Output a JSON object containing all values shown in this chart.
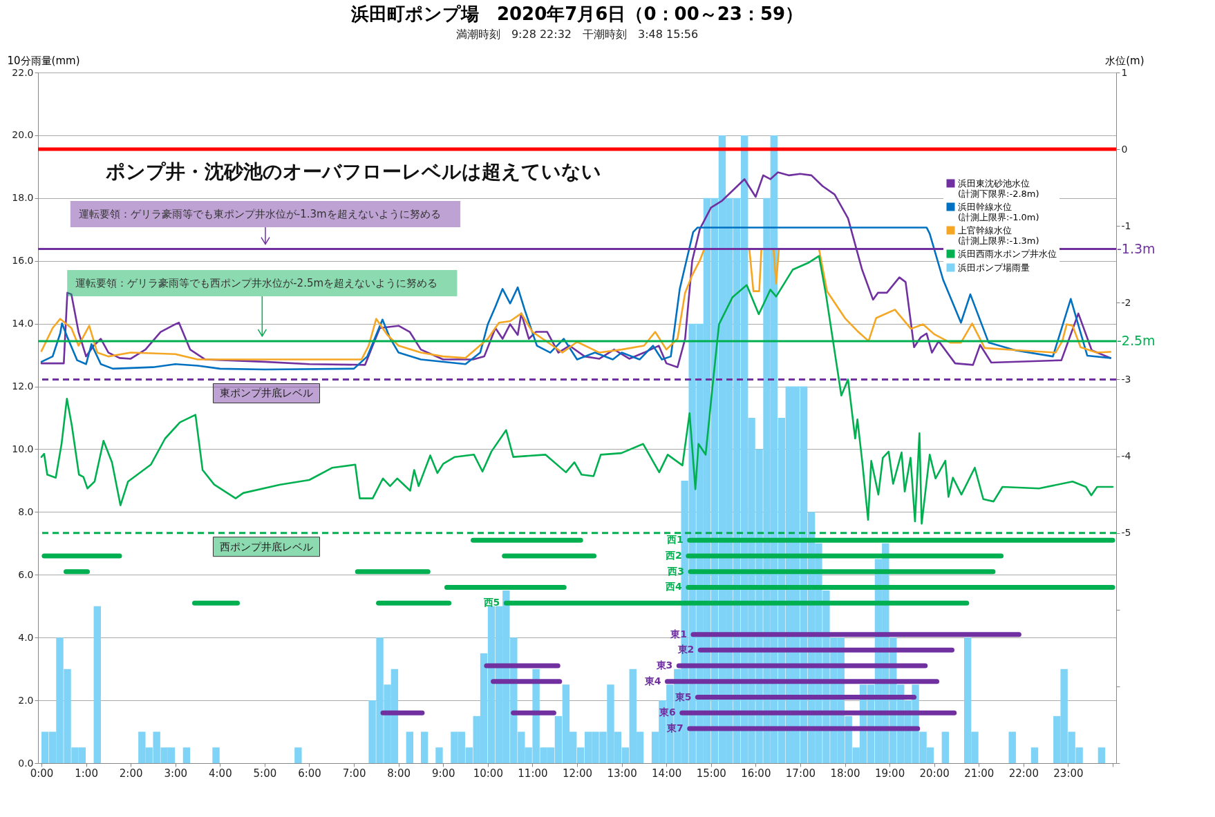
{
  "chart_data": {
    "type": "line",
    "title": "浜田町ポンプ場　2020年7月6日（0：00～23：59）",
    "subtitle": "満潮時刻　9:28 22:32　干潮時刻　3:48 15:56",
    "ylabel": "10分雨量(mm)",
    "y2label": "水位(m)",
    "grid": "y",
    "legend": "top right",
    "xlim": [
      0,
      24
    ],
    "xticks": [
      {
        "value": 0,
        "label": "0:00"
      },
      {
        "value": 1,
        "label": "1:00"
      },
      {
        "value": 2,
        "label": "2:00"
      },
      {
        "value": 3,
        "label": "3:00"
      },
      {
        "value": 4,
        "label": "4:00"
      },
      {
        "value": 5,
        "label": "5:00"
      },
      {
        "value": 6,
        "label": "6:00"
      },
      {
        "value": 7,
        "label": "7:00"
      },
      {
        "value": 8,
        "label": "8:00"
      },
      {
        "value": 9,
        "label": "9:00"
      },
      {
        "value": 10,
        "label": "10:00"
      },
      {
        "value": 11,
        "label": "11:00"
      },
      {
        "value": 12,
        "label": "12:00"
      },
      {
        "value": 13,
        "label": "13:00"
      },
      {
        "value": 14,
        "label": "14:00"
      },
      {
        "value": 15,
        "label": "15:00"
      },
      {
        "value": 16,
        "label": "16:00"
      },
      {
        "value": 17,
        "label": "17:00"
      },
      {
        "value": 18,
        "label": "18:00"
      },
      {
        "value": 19,
        "label": "19:00"
      },
      {
        "value": 20,
        "label": "20:00"
      },
      {
        "value": 21,
        "label": "21:00"
      },
      {
        "value": 22,
        "label": "22:00"
      },
      {
        "value": 23,
        "label": "23:00"
      },
      {
        "value": 24,
        "label": null
      }
    ],
    "ylim": [
      0,
      22
    ],
    "yticks": [
      {
        "value": 0,
        "label": "0.0"
      },
      {
        "value": 2,
        "label": "2.0"
      },
      {
        "value": 4,
        "label": "4.0"
      },
      {
        "value": 6,
        "label": "6.0"
      },
      {
        "value": 8,
        "label": "8.0"
      },
      {
        "value": 10,
        "label": "10.0"
      },
      {
        "value": 12,
        "label": "12.0"
      },
      {
        "value": 14,
        "label": "14.0"
      },
      {
        "value": 16,
        "label": "16.0"
      },
      {
        "value": 18,
        "label": "18.0"
      },
      {
        "value": 20,
        "label": "20.0"
      },
      {
        "value": 22,
        "label": "22.0"
      }
    ],
    "y2lim": [
      -8,
      1
    ],
    "y2ticks": [
      {
        "value": -8,
        "label": null
      },
      {
        "value": -7,
        "label": null
      },
      {
        "value": -6,
        "label": null
      },
      -5,
      -4,
      -3,
      -2,
      -1,
      0,
      1
    ],
    "series": [
      {
        "name": "浜田ポンプ場雨量",
        "type": "bar",
        "color": "#7fd3f7",
        "x": [
          0,
          0.17,
          0.33,
          0.5,
          0.67,
          0.83,
          1.17,
          2.17,
          2.33,
          2.5,
          2.67,
          2.83,
          3.17,
          3.83,
          5.67,
          7.33,
          7.5,
          7.67,
          7.83,
          8.17,
          8.5,
          8.83,
          9.17,
          9.33,
          9.5,
          9.67,
          9.83,
          10,
          10.17,
          10.33,
          10.5,
          10.67,
          10.83,
          11,
          11.17,
          11.33,
          11.5,
          11.67,
          11.83,
          12,
          12.17,
          12.33,
          12.5,
          12.67,
          12.83,
          13,
          13.17,
          13.33,
          13.67,
          13.83,
          14,
          14.17,
          14.33,
          14.5,
          14.67,
          14.83,
          15,
          15.17,
          15.33,
          15.5,
          15.67,
          15.83,
          16,
          16.17,
          16.33,
          16.5,
          16.67,
          16.83,
          17,
          17.17,
          17.33,
          17.5,
          17.67,
          17.83,
          18,
          18.17,
          18.33,
          18.5,
          18.67,
          18.83,
          19,
          19.17,
          19.33,
          19.5,
          19.67,
          19.83,
          20.17,
          20.67,
          20.83,
          21.67,
          22.17,
          22.67,
          22.83,
          23,
          23.17,
          23.67
        ],
        "values": [
          1,
          1,
          4,
          3,
          0.5,
          0.5,
          5,
          1,
          0.5,
          1,
          0.5,
          0.5,
          0.5,
          0.5,
          0.5,
          2,
          4,
          2.5,
          3,
          1,
          1,
          0.5,
          1,
          1,
          0.5,
          1.5,
          3.5,
          5,
          5,
          5.5,
          4,
          1,
          0.5,
          3,
          0.5,
          0.5,
          1.5,
          2.5,
          1,
          0.5,
          1,
          1,
          1,
          2.5,
          1,
          0.5,
          3,
          1,
          1,
          2,
          2.5,
          3,
          9,
          14,
          14,
          18,
          18,
          20,
          18,
          18,
          20,
          11,
          10,
          18,
          20,
          11,
          12,
          12,
          12,
          8,
          7,
          5.5,
          4,
          4,
          1.5,
          0.5,
          2.5,
          2.5,
          6.5,
          7,
          4,
          2.5,
          2,
          2.5,
          1,
          0.5,
          1,
          4,
          1,
          1,
          0.5,
          1.5,
          3,
          1,
          0.5,
          0.5
        ]
      },
      {
        "name": "浜田東沈砂池水位\n(計測下限界:-2.8m)",
        "color": "#7030a0",
        "axis": "y2",
        "x": [
          0,
          0.5,
          0.58,
          0.67,
          0.83,
          1,
          1.17,
          1.33,
          1.5,
          1.75,
          2,
          2.33,
          2.67,
          3,
          3.08,
          3.33,
          3.67,
          5,
          6,
          7.25,
          7.42,
          7.58,
          8,
          8.25,
          8.5,
          9,
          9.67,
          9.92,
          10.17,
          10.33,
          10.5,
          10.67,
          10.75,
          10.92,
          11.08,
          11.33,
          11.58,
          11.83,
          12.17,
          12.5,
          12.83,
          13.17,
          13.5,
          13.83,
          14,
          14.25,
          14.42,
          14.58,
          14.75,
          15,
          15.25,
          15.5,
          15.75,
          16,
          16.17,
          16.33,
          16.5,
          16.75,
          17,
          17.25,
          17.5,
          17.77,
          18.07,
          18.38,
          18.63,
          18.74,
          18.94,
          19.22,
          19.36,
          19.55,
          19.7,
          19.83,
          19.95,
          20.1,
          20.47,
          20.87,
          21.03,
          21.28,
          22.85,
          23.23,
          23.53,
          23.95
        ],
        "values": [
          -2.79,
          -2.79,
          -1.87,
          -1.89,
          -2.38,
          -2.7,
          -2.56,
          -2.47,
          -2.65,
          -2.72,
          -2.73,
          -2.61,
          -2.38,
          -2.28,
          -2.26,
          -2.61,
          -2.74,
          -2.77,
          -2.8,
          -2.81,
          -2.56,
          -2.33,
          -2.3,
          -2.38,
          -2.61,
          -2.74,
          -2.74,
          -2.7,
          -2.33,
          -2.47,
          -2.28,
          -2.42,
          -2.14,
          -2.47,
          -2.38,
          -2.38,
          -2.65,
          -2.56,
          -2.7,
          -2.73,
          -2.61,
          -2.73,
          -2.65,
          -2.56,
          -2.79,
          -2.84,
          -2.47,
          -1.45,
          -1.04,
          -0.76,
          -0.67,
          -0.53,
          -0.39,
          -0.62,
          -0.34,
          -0.39,
          -0.3,
          -0.34,
          -0.32,
          -0.34,
          -0.48,
          -0.59,
          -0.9,
          -1.56,
          -1.96,
          -1.87,
          -1.87,
          -1.67,
          -1.73,
          -2.58,
          -2.45,
          -2.4,
          -2.65,
          -2.5,
          -2.79,
          -2.81,
          -2.55,
          -2.78,
          -2.75,
          -2.14,
          -2.62,
          -2.72
        ]
      },
      {
        "name": "浜田幹線水位\n(計測上限界:-1.0m)",
        "color": "#0070c0",
        "axis": "y2",
        "x": [
          0,
          0.25,
          0.42,
          0.46,
          0.58,
          0.8,
          1,
          1.12,
          1.33,
          1.6,
          2.5,
          3,
          3.5,
          4,
          5,
          7,
          7.3,
          7.64,
          7.8,
          8,
          8.5,
          9.5,
          9.83,
          10,
          10.17,
          10.33,
          10.5,
          10.67,
          10.83,
          11.1,
          11.4,
          11.7,
          12,
          12.4,
          12.8,
          13,
          13.4,
          13.7,
          13.9,
          14.1,
          14.3,
          14.45,
          14.6,
          14.7,
          19.83,
          19.9,
          20.2,
          20.6,
          20.81,
          21.22,
          21.82,
          22.66,
          23.06,
          23.43,
          23.95
        ],
        "values": [
          -2.77,
          -2.7,
          -2.4,
          -2.27,
          -2.45,
          -2.75,
          -2.8,
          -2.54,
          -2.8,
          -2.86,
          -2.84,
          -2.8,
          -2.82,
          -2.86,
          -2.87,
          -2.86,
          -2.7,
          -2.22,
          -2.45,
          -2.65,
          -2.74,
          -2.8,
          -2.65,
          -2.28,
          -2.05,
          -1.82,
          -2.01,
          -1.8,
          -2.1,
          -2.56,
          -2.65,
          -2.47,
          -2.74,
          -2.65,
          -2.74,
          -2.65,
          -2.74,
          -2.56,
          -2.74,
          -2.7,
          -1.82,
          -1.45,
          -1.08,
          -1.02,
          -1.02,
          -1.1,
          -1.7,
          -2.26,
          -1.89,
          -2.52,
          -2.62,
          -2.7,
          -1.95,
          -2.69,
          -2.72
        ]
      },
      {
        "name": "上官幹線水位\n(計測上限界:-1.3m)",
        "color": "#f5a623",
        "axis": "y2",
        "x": [
          0,
          0.25,
          0.42,
          0.67,
          0.83,
          1.07,
          1.25,
          1.5,
          2,
          3,
          3.5,
          5,
          6,
          7.17,
          7.33,
          7.5,
          7.75,
          8,
          8.5,
          9,
          9.5,
          10,
          10.25,
          10.5,
          10.75,
          11,
          11.33,
          11.67,
          12,
          12.5,
          13,
          13.5,
          13.75,
          14,
          14.25,
          14.42,
          14.58,
          14.75,
          14.85,
          15.86,
          15.95,
          16.08,
          16.13,
          16.4,
          16.46,
          16.52,
          17.42,
          17.6,
          18,
          18.3,
          18.53,
          18.7,
          19.12,
          19.48,
          19.75,
          20,
          20.36,
          20.6,
          20.85,
          21.13,
          21.9,
          22.72,
          22.87,
          22.97,
          23.1,
          23.28,
          23.64,
          23.95
        ],
        "values": [
          -2.63,
          -2.33,
          -2.21,
          -2.33,
          -2.56,
          -2.3,
          -2.65,
          -2.7,
          -2.65,
          -2.67,
          -2.74,
          -2.74,
          -2.74,
          -2.74,
          -2.56,
          -2.21,
          -2.42,
          -2.56,
          -2.65,
          -2.7,
          -2.72,
          -2.47,
          -2.26,
          -2.24,
          -2.14,
          -2.38,
          -2.51,
          -2.65,
          -2.51,
          -2.65,
          -2.61,
          -2.56,
          -2.38,
          -2.61,
          -2.47,
          -1.87,
          -1.64,
          -1.45,
          -1.3,
          -1.3,
          -1.85,
          -1.85,
          -1.3,
          -1.3,
          -1.75,
          -1.3,
          -1.3,
          -1.85,
          -2.2,
          -2.38,
          -2.5,
          -2.2,
          -2.09,
          -2.34,
          -2.28,
          -2.41,
          -2.52,
          -2.52,
          -2.27,
          -2.59,
          -2.62,
          -2.65,
          -2.5,
          -2.28,
          -2.3,
          -2.58,
          -2.65,
          -2.64
        ]
      },
      {
        "name": "浜田西雨水ポンプ井水位",
        "color": "#00b050",
        "axis": "y2",
        "x": [
          0,
          0.06,
          0.13,
          0.32,
          0.45,
          0.57,
          0.68,
          0.84,
          0.94,
          1.03,
          1.19,
          1.39,
          1.58,
          1.77,
          1.94,
          2.45,
          2.77,
          3.1,
          3.45,
          3.61,
          3.87,
          4.35,
          4.52,
          5.35,
          6,
          6.52,
          7.03,
          7.13,
          7.42,
          7.65,
          7.81,
          7.97,
          8.26,
          8.35,
          8.45,
          8.71,
          8.87,
          9,
          9.26,
          9.69,
          9.88,
          10.08,
          10.41,
          10.57,
          11.29,
          11.75,
          11.94,
          12.1,
          12.37,
          12.53,
          12.99,
          13.48,
          13.84,
          14.03,
          14.36,
          14.52,
          14.65,
          14.72,
          14.88,
          15.05,
          15.18,
          15.48,
          15.8,
          16.07,
          16.33,
          16.46,
          16.83,
          17.18,
          17.42,
          17.58,
          17.75,
          17.92,
          18.07,
          18.23,
          18.28,
          18.39,
          18.52,
          18.59,
          18.75,
          18.85,
          18.98,
          19.08,
          19.27,
          19.34,
          19.47,
          19.57,
          19.67,
          19.72,
          19.9,
          20.03,
          20.25,
          20.32,
          20.42,
          20.61,
          20.91,
          21.1,
          21.33,
          21.53,
          22.35,
          23.1,
          23.4,
          23.52,
          23.65,
          24
        ],
        "values": [
          -4.01,
          -3.97,
          -4.24,
          -4.28,
          -3.84,
          -3.25,
          -3.6,
          -4.24,
          -4.27,
          -4.42,
          -4.33,
          -3.8,
          -4.08,
          -4.64,
          -4.33,
          -4.11,
          -3.77,
          -3.56,
          -3.46,
          -4.18,
          -4.37,
          -4.55,
          -4.48,
          -4.37,
          -4.31,
          -4.15,
          -4.11,
          -4.55,
          -4.55,
          -4.29,
          -4.39,
          -4.29,
          -4.45,
          -4.18,
          -4.39,
          -3.99,
          -4.22,
          -4.1,
          -4.01,
          -3.98,
          -4.2,
          -3.94,
          -3.66,
          -4.01,
          -3.98,
          -4.21,
          -4.08,
          -4.24,
          -4.26,
          -3.98,
          -3.96,
          -3.84,
          -4.21,
          -3.98,
          -4.12,
          -3.44,
          -4.43,
          -3.84,
          -3.98,
          -3,
          -2.28,
          -1.93,
          -1.77,
          -2.15,
          -1.83,
          -1.92,
          -1.57,
          -1.48,
          -1.39,
          -1.91,
          -2.56,
          -3.21,
          -3,
          -3.77,
          -3.52,
          -4.08,
          -4.83,
          -4.06,
          -4.5,
          -4.02,
          -3.94,
          -4.36,
          -3.95,
          -4.46,
          -4.02,
          -4.85,
          -3.7,
          -4.88,
          -3.98,
          -4.29,
          -4.06,
          -4.53,
          -4.28,
          -4.5,
          -4.15,
          -4.56,
          -4.59,
          -4.4,
          -4.42,
          -4.33,
          -4.4,
          -4.51,
          -4.4,
          -4.4
        ]
      },
      {
        "color": "#00b050",
        "x": [
          9.67,
          12.08
        ],
        "values": [
          7.1,
          7.1
        ]
      },
      {
        "name": "西1",
        "color": "#00b050",
        "x": [
          14.52,
          24
        ],
        "values": [
          7.1,
          7.1
        ]
      },
      {
        "color": "#00b050",
        "x": [
          0.06,
          1.75
        ],
        "values": [
          6.6,
          6.6
        ]
      },
      {
        "color": "#00b050",
        "x": [
          10.37,
          12.38
        ],
        "values": [
          6.6,
          6.6
        ]
      },
      {
        "name": "西2",
        "color": "#00b050",
        "x": [
          14.49,
          21.5
        ],
        "values": [
          6.6,
          6.6
        ]
      },
      {
        "color": "#00b050",
        "x": [
          0.55,
          1.03
        ],
        "values": [
          6.1,
          6.1
        ]
      },
      {
        "color": "#00b050",
        "x": [
          7.08,
          8.66
        ],
        "values": [
          6.1,
          6.1
        ]
      },
      {
        "name": "西3",
        "color": "#00b050",
        "x": [
          14.54,
          21.32
        ],
        "values": [
          6.1,
          6.1
        ]
      },
      {
        "color": "#00b050",
        "x": [
          9.08,
          11.71
        ],
        "values": [
          5.6,
          5.6
        ]
      },
      {
        "name": "西4",
        "color": "#00b050",
        "x": [
          14.49,
          24
        ],
        "values": [
          5.6,
          5.6
        ]
      },
      {
        "color": "#00b050",
        "x": [
          3.43,
          4.39
        ],
        "values": [
          5.1,
          5.1
        ]
      },
      {
        "color": "#00b050",
        "x": [
          7.55,
          9.13
        ],
        "values": [
          5.1,
          5.1
        ]
      },
      {
        "name": "西5",
        "color": "#00b050",
        "x": [
          10.41,
          20.73
        ],
        "values": [
          5.1,
          5.1
        ]
      },
      {
        "name": "東1",
        "color": "#7030a0",
        "x": [
          14.6,
          21.9
        ],
        "values": [
          4.1,
          4.1
        ]
      },
      {
        "name": "東2",
        "color": "#7030a0",
        "x": [
          14.76,
          20.4
        ],
        "values": [
          3.6,
          3.6
        ]
      },
      {
        "color": "#7030a0",
        "x": [
          9.97,
          11.57
        ],
        "values": [
          3.1,
          3.1
        ]
      },
      {
        "name": "東3",
        "color": "#7030a0",
        "x": [
          14.28,
          19.8
        ],
        "values": [
          3.1,
          3.1
        ]
      },
      {
        "color": "#7030a0",
        "x": [
          10.12,
          11.61
        ],
        "values": [
          2.6,
          2.6
        ]
      },
      {
        "name": "東4",
        "color": "#7030a0",
        "x": [
          14.02,
          20.06
        ],
        "values": [
          2.6,
          2.6
        ]
      },
      {
        "name": "東5",
        "color": "#7030a0",
        "x": [
          14.7,
          19.55
        ],
        "values": [
          2.1,
          2.1
        ]
      },
      {
        "color": "#7030a0",
        "x": [
          7.65,
          8.53
        ],
        "values": [
          1.6,
          1.6
        ]
      },
      {
        "color": "#7030a0",
        "x": [
          10.57,
          11.48
        ],
        "values": [
          1.6,
          1.6
        ]
      },
      {
        "name": "東6",
        "color": "#7030a0",
        "x": [
          14.35,
          20.45
        ],
        "values": [
          1.6,
          1.6
        ]
      },
      {
        "name": "東7",
        "color": "#7030a0",
        "x": [
          14.52,
          19.63
        ],
        "values": [
          1.1,
          1.1
        ]
      }
    ],
    "ref_lines": [
      {
        "axis": "y2",
        "value": 0,
        "color": "#ff0000"
      },
      {
        "axis": "y2",
        "value": -1.3,
        "label": "-1.3m",
        "color": "#7030a0"
      },
      {
        "axis": "y2",
        "value": -2.5,
        "label": "-2.5m",
        "color": "#00b050"
      },
      {
        "axis": "y2",
        "value": -3,
        "label": "東ポンプ井底レベル",
        "color": "#7030a0",
        "line_style": "dashed"
      },
      {
        "axis": "y2",
        "value": -5,
        "label": "西ポンプ井底レベル",
        "color": "#00b050",
        "line_style": "dashed"
      }
    ],
    "annotations": [
      "ポンプ井・沈砂池のオーバフローレベルは超えていない",
      "運転要領：ゲリラ豪雨等でも東ポンプ井水位が-1.3mを超えないように努める",
      "運転要領：ゲリラ豪雨等でも西ポンプ井水位が-2.5mを超えないように努める"
    ]
  }
}
